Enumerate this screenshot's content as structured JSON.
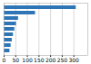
{
  "chart_data": {
    "type": "bar",
    "orientation": "horizontal",
    "categories": [
      null,
      null,
      null,
      null,
      null,
      null,
      null,
      null,
      null
    ],
    "values": [
      310,
      135,
      62,
      53,
      46,
      40,
      35,
      30,
      25
    ],
    "color": "#2e75b6",
    "xlim": [
      0,
      360
    ],
    "xticks": [
      0,
      50,
      100,
      150,
      200,
      250,
      300
    ],
    "grid": true,
    "tick_labels": "x"
  }
}
